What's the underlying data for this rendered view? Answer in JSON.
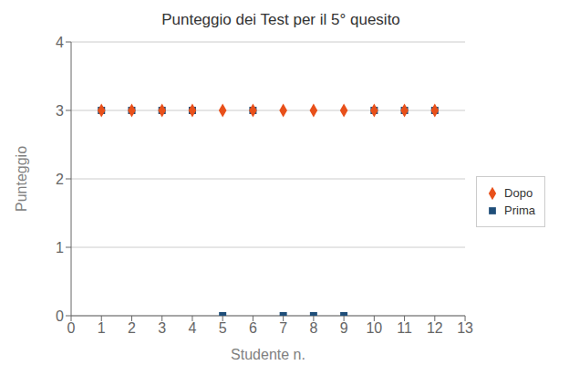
{
  "chart_data": {
    "type": "scatter",
    "title": "Punteggio dei Test per il 5° quesito",
    "x_label": "Studente n.",
    "y_label": "Punteggio",
    "x": [
      1,
      2,
      3,
      4,
      5,
      6,
      7,
      8,
      9,
      10,
      11,
      12
    ],
    "series": [
      {
        "name": "Dopo",
        "color": "#E8501A",
        "marker": "diamond",
        "values": [
          3,
          3,
          3,
          3,
          3,
          3,
          3,
          3,
          3,
          3,
          3,
          3
        ]
      },
      {
        "name": "Prima",
        "color": "#1F4E79",
        "marker": "square",
        "values": [
          3,
          3,
          3,
          3,
          0,
          3,
          0,
          0,
          0,
          3,
          3,
          3
        ]
      }
    ],
    "xlim": [
      0,
      13
    ],
    "ylim": [
      0,
      4
    ],
    "xticks": [
      0,
      1,
      2,
      3,
      4,
      5,
      6,
      7,
      8,
      9,
      10,
      11,
      12,
      13
    ],
    "yticks": [
      0,
      1,
      2,
      3,
      4
    ],
    "grid": "y",
    "legend": "right"
  }
}
